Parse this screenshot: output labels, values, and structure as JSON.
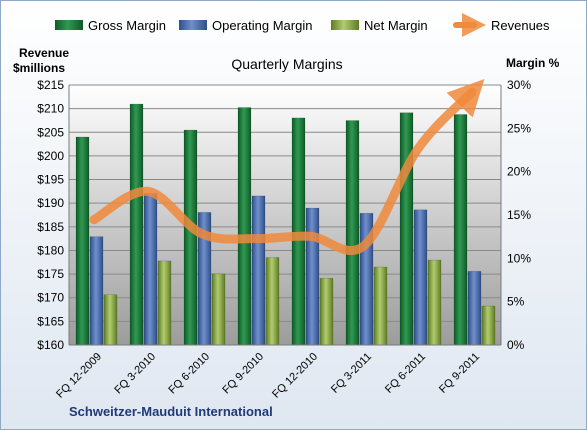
{
  "chart_data": {
    "type": "bar",
    "title": "Quarterly Margins",
    "footer": "Schweitzer-Mauduit International",
    "categories": [
      "FQ 12-2009",
      "FQ 3-2010",
      "FQ 6-2010",
      "FQ 9-2010",
      "FQ 12-2010",
      "FQ 3-2011",
      "FQ 6-2011",
      "FQ 9-2011"
    ],
    "left_axis": {
      "label_line1": "Revenue",
      "label_line2": "$millions",
      "min": 160,
      "max": 215,
      "step": 5,
      "ticks": [
        "$160",
        "$165",
        "$170",
        "$175",
        "$180",
        "$185",
        "$190",
        "$195",
        "$200",
        "$205",
        "$210",
        "$215"
      ]
    },
    "right_axis": {
      "label": "Margin %",
      "min": 0,
      "max": 30,
      "step": 5,
      "ticks": [
        "0%",
        "5%",
        "10%",
        "15%",
        "20%",
        "25%",
        "30%"
      ]
    },
    "series": [
      {
        "name": "Gross Margin",
        "axis": "right",
        "color": "#1e7a3c",
        "values": [
          24.0,
          27.8,
          24.8,
          27.4,
          26.2,
          25.9,
          26.8,
          26.6
        ]
      },
      {
        "name": "Operating Margin",
        "axis": "right",
        "color": "#4a6fb0",
        "values": [
          12.5,
          17.5,
          15.3,
          17.2,
          15.8,
          15.2,
          15.6,
          8.5
        ]
      },
      {
        "name": "Net Margin",
        "axis": "right",
        "color": "#8fb04a",
        "values": [
          5.8,
          9.7,
          8.2,
          10.1,
          7.7,
          9.0,
          9.8,
          4.5
        ]
      }
    ],
    "line_series": {
      "name": "Revenues",
      "axis": "left",
      "color": "#f08a3c",
      "values": [
        186.5,
        192.5,
        183.5,
        182.5,
        183.0,
        181.0,
        201.5,
        213.5
      ]
    },
    "grid": true,
    "legend": "top"
  }
}
